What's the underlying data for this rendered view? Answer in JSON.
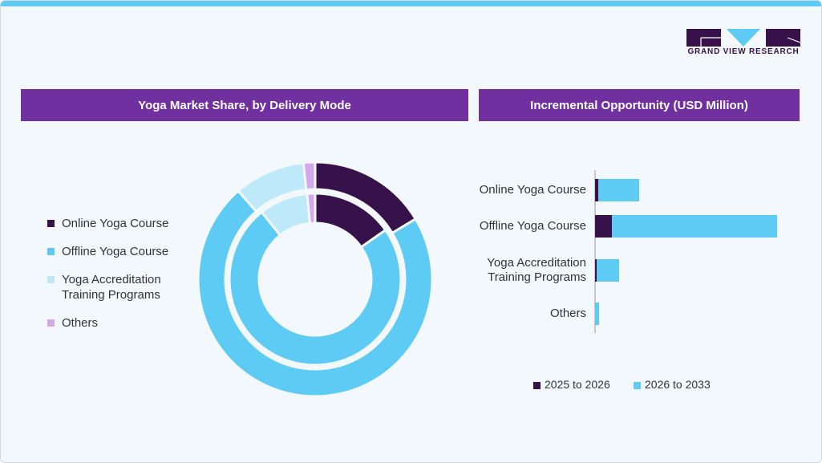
{
  "logo": {
    "text": "GRAND VIEW RESEARCH"
  },
  "colors": {
    "online": "#37114a",
    "offline": "#5ecbf5",
    "accreditation": "#bde9f9",
    "others": "#d4a9ec",
    "header": "#7030a0"
  },
  "left_header": "Yoga Market Share, by Delivery Mode",
  "right_header": "Incremental Opportunity (USD Million)",
  "chart_data": [
    {
      "type": "pie",
      "variant": "nested-donut",
      "title": "Yoga Market Share, by Delivery Mode",
      "categories": [
        "Online Yoga Course",
        "Offline Yoga Course",
        "Yoga Accreditation Training Programs",
        "Others"
      ],
      "series": [
        {
          "ring": "outer",
          "values": [
            16.4,
            72.2,
            9.8,
            1.6
          ]
        },
        {
          "ring": "inner",
          "values": [
            15.3,
            74.0,
            9.2,
            1.5
          ]
        }
      ],
      "legend": [
        "Online Yoga Course",
        "Offline Yoga Course",
        "Yoga Accreditation Training Programs",
        "Others"
      ],
      "legend_position": "left"
    },
    {
      "type": "bar",
      "orientation": "horizontal",
      "stacked": true,
      "title": "Incremental Opportunity (USD Million)",
      "categories": [
        "Online Yoga Course",
        "Offline Yoga Course",
        "Yoga Accreditation Training Programs",
        "Others"
      ],
      "category_lines": [
        [
          "Online Yoga Course"
        ],
        [
          "Offline Yoga Course"
        ],
        [
          "Yoga Accreditation",
          "Training Programs"
        ],
        [
          "Others"
        ]
      ],
      "series": [
        {
          "name": "2025 to 2026",
          "values": [
            4,
            21,
            2,
            0
          ]
        },
        {
          "name": "2026 to 2033",
          "values": [
            51,
            206,
            28,
            5
          ]
        }
      ],
      "axis_labels_shown": false,
      "legend_position": "bottom"
    }
  ]
}
